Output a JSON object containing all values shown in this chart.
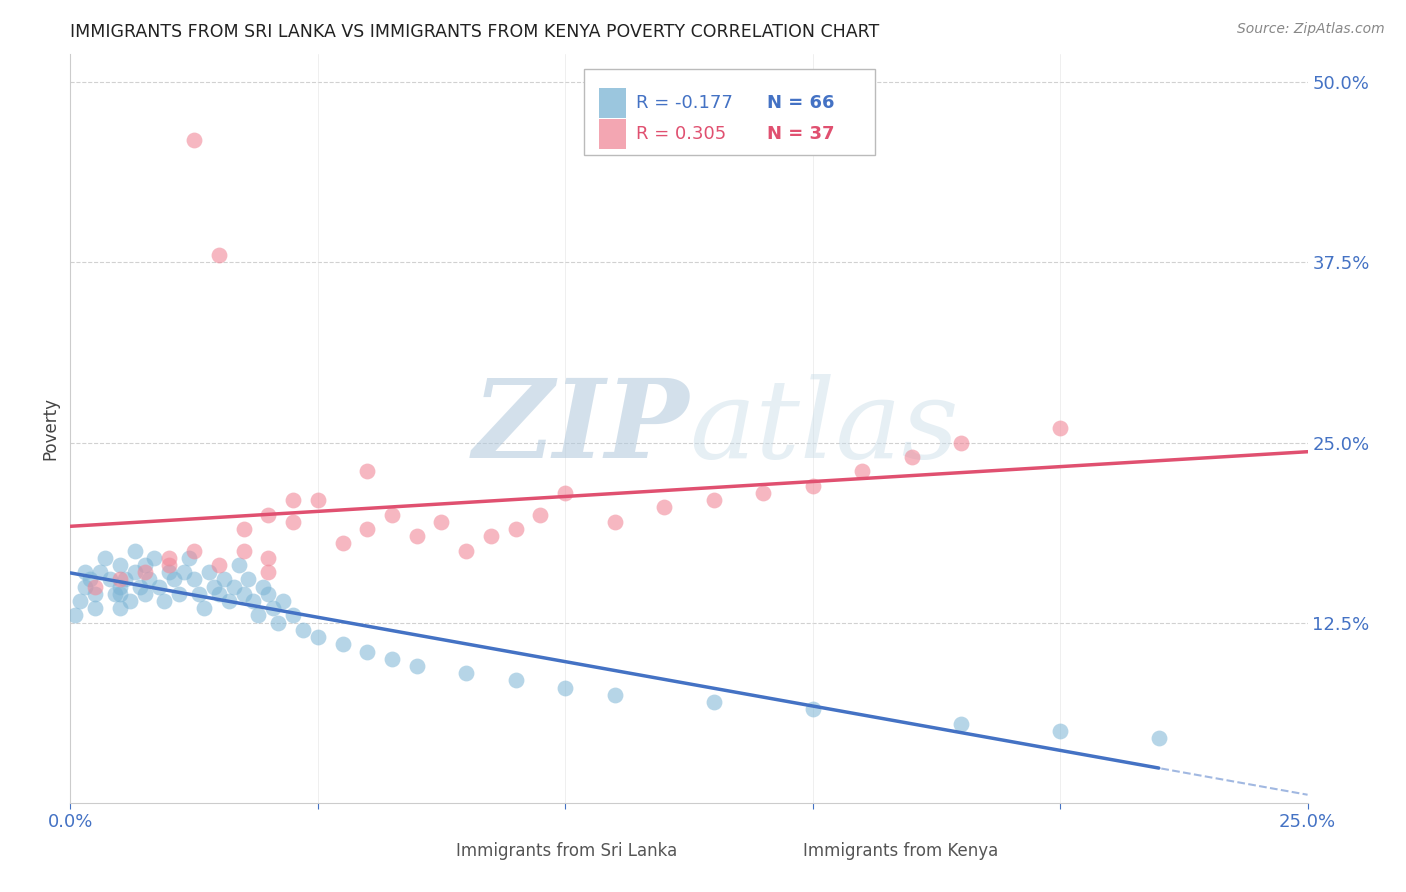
{
  "title": "IMMIGRANTS FROM SRI LANKA VS IMMIGRANTS FROM KENYA POVERTY CORRELATION CHART",
  "source": "Source: ZipAtlas.com",
  "ylabel": "Poverty",
  "xlim": [
    0.0,
    0.25
  ],
  "ylim": [
    0.0,
    0.52
  ],
  "xticks": [
    0.0,
    0.05,
    0.1,
    0.15,
    0.2,
    0.25
  ],
  "xtick_labels": [
    "0.0%",
    "",
    "",
    "",
    "",
    "25.0%"
  ],
  "ytick_positions": [
    0.125,
    0.25,
    0.375,
    0.5
  ],
  "ytick_labels": [
    "12.5%",
    "25.0%",
    "37.5%",
    "50.0%"
  ],
  "grid_color": "#cccccc",
  "background_color": "#ffffff",
  "sri_lanka_color": "#7ab3d4",
  "kenya_color": "#f08898",
  "sri_lanka_R": -0.177,
  "sri_lanka_N": 66,
  "kenya_R": 0.305,
  "kenya_N": 37,
  "watermark_text": "ZIPatlas",
  "watermark_zip_color": "#b8cfe0",
  "watermark_atlas_color": "#c8dce8",
  "sri_lanka_x": [
    0.001,
    0.002,
    0.003,
    0.003,
    0.004,
    0.005,
    0.005,
    0.006,
    0.007,
    0.008,
    0.009,
    0.01,
    0.01,
    0.01,
    0.01,
    0.011,
    0.012,
    0.013,
    0.013,
    0.014,
    0.015,
    0.015,
    0.016,
    0.017,
    0.018,
    0.019,
    0.02,
    0.021,
    0.022,
    0.023,
    0.024,
    0.025,
    0.026,
    0.027,
    0.028,
    0.029,
    0.03,
    0.031,
    0.032,
    0.033,
    0.034,
    0.035,
    0.036,
    0.037,
    0.038,
    0.039,
    0.04,
    0.041,
    0.042,
    0.043,
    0.045,
    0.047,
    0.05,
    0.055,
    0.06,
    0.065,
    0.07,
    0.08,
    0.09,
    0.1,
    0.11,
    0.13,
    0.15,
    0.18,
    0.2,
    0.22
  ],
  "sri_lanka_y": [
    0.13,
    0.14,
    0.15,
    0.16,
    0.155,
    0.145,
    0.135,
    0.16,
    0.17,
    0.155,
    0.145,
    0.135,
    0.15,
    0.165,
    0.145,
    0.155,
    0.14,
    0.16,
    0.175,
    0.15,
    0.145,
    0.165,
    0.155,
    0.17,
    0.15,
    0.14,
    0.16,
    0.155,
    0.145,
    0.16,
    0.17,
    0.155,
    0.145,
    0.135,
    0.16,
    0.15,
    0.145,
    0.155,
    0.14,
    0.15,
    0.165,
    0.145,
    0.155,
    0.14,
    0.13,
    0.15,
    0.145,
    0.135,
    0.125,
    0.14,
    0.13,
    0.12,
    0.115,
    0.11,
    0.105,
    0.1,
    0.095,
    0.09,
    0.085,
    0.08,
    0.075,
    0.07,
    0.065,
    0.055,
    0.05,
    0.045
  ],
  "kenya_x": [
    0.005,
    0.01,
    0.015,
    0.02,
    0.025,
    0.03,
    0.03,
    0.035,
    0.04,
    0.04,
    0.045,
    0.05,
    0.055,
    0.06,
    0.065,
    0.07,
    0.075,
    0.08,
    0.085,
    0.09,
    0.095,
    0.1,
    0.11,
    0.12,
    0.13,
    0.14,
    0.15,
    0.16,
    0.17,
    0.18,
    0.025,
    0.035,
    0.045,
    0.06,
    0.2,
    0.02,
    0.04
  ],
  "kenya_y": [
    0.15,
    0.155,
    0.16,
    0.165,
    0.175,
    0.38,
    0.165,
    0.19,
    0.2,
    0.17,
    0.195,
    0.21,
    0.18,
    0.19,
    0.2,
    0.185,
    0.195,
    0.175,
    0.185,
    0.19,
    0.2,
    0.215,
    0.195,
    0.205,
    0.21,
    0.215,
    0.22,
    0.23,
    0.24,
    0.25,
    0.46,
    0.175,
    0.21,
    0.23,
    0.26,
    0.17,
    0.16
  ]
}
